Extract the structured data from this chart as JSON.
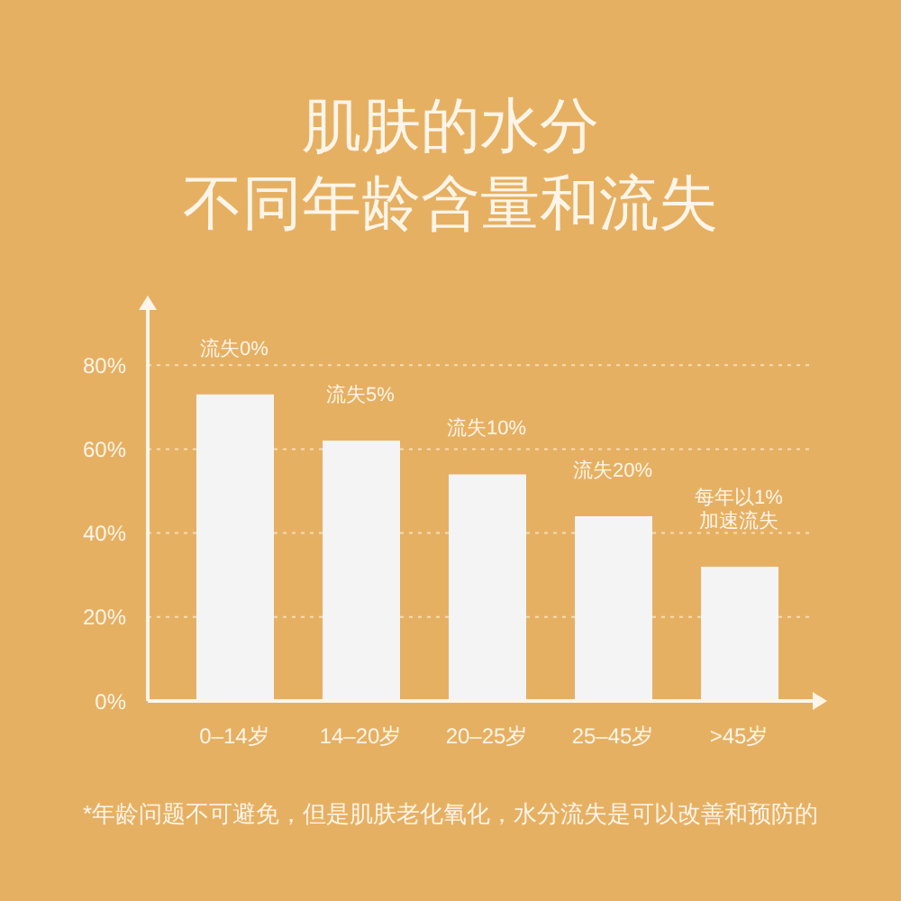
{
  "chart_data": {
    "type": "bar",
    "title": "肌肤的水分",
    "subtitle": "不同年龄含量和流失",
    "categories": [
      "0–14岁",
      "14–20岁",
      "20–25岁",
      "25–45岁",
      ">45岁"
    ],
    "values": [
      73,
      62,
      54,
      44,
      32
    ],
    "color": "#f4f4f4",
    "ylim": [
      0,
      94
    ],
    "yticks": [
      {
        "value": 0,
        "label": "0%"
      },
      {
        "value": 20,
        "label": "20%"
      },
      {
        "value": 40,
        "label": "40%"
      },
      {
        "value": 60,
        "label": "60%"
      },
      {
        "value": 80,
        "label": "80%"
      }
    ],
    "grid": "y",
    "annotations": [
      {
        "text": "流失0%",
        "x": "0–14岁",
        "y": 73
      },
      {
        "text": "流失5%",
        "x": "14–20岁",
        "y": 62
      },
      {
        "text": "流失10%",
        "x": "20–25岁",
        "y": 54
      },
      {
        "text": "流失20%",
        "x": "25–45岁",
        "y": 44
      },
      {
        "text": "每年以1%\n加速流失",
        "x": ">45岁",
        "y": 32
      },
      "*年龄问题不可避免，但是肌肤老化氧化，水分流失是可以改善和预防的"
    ]
  }
}
